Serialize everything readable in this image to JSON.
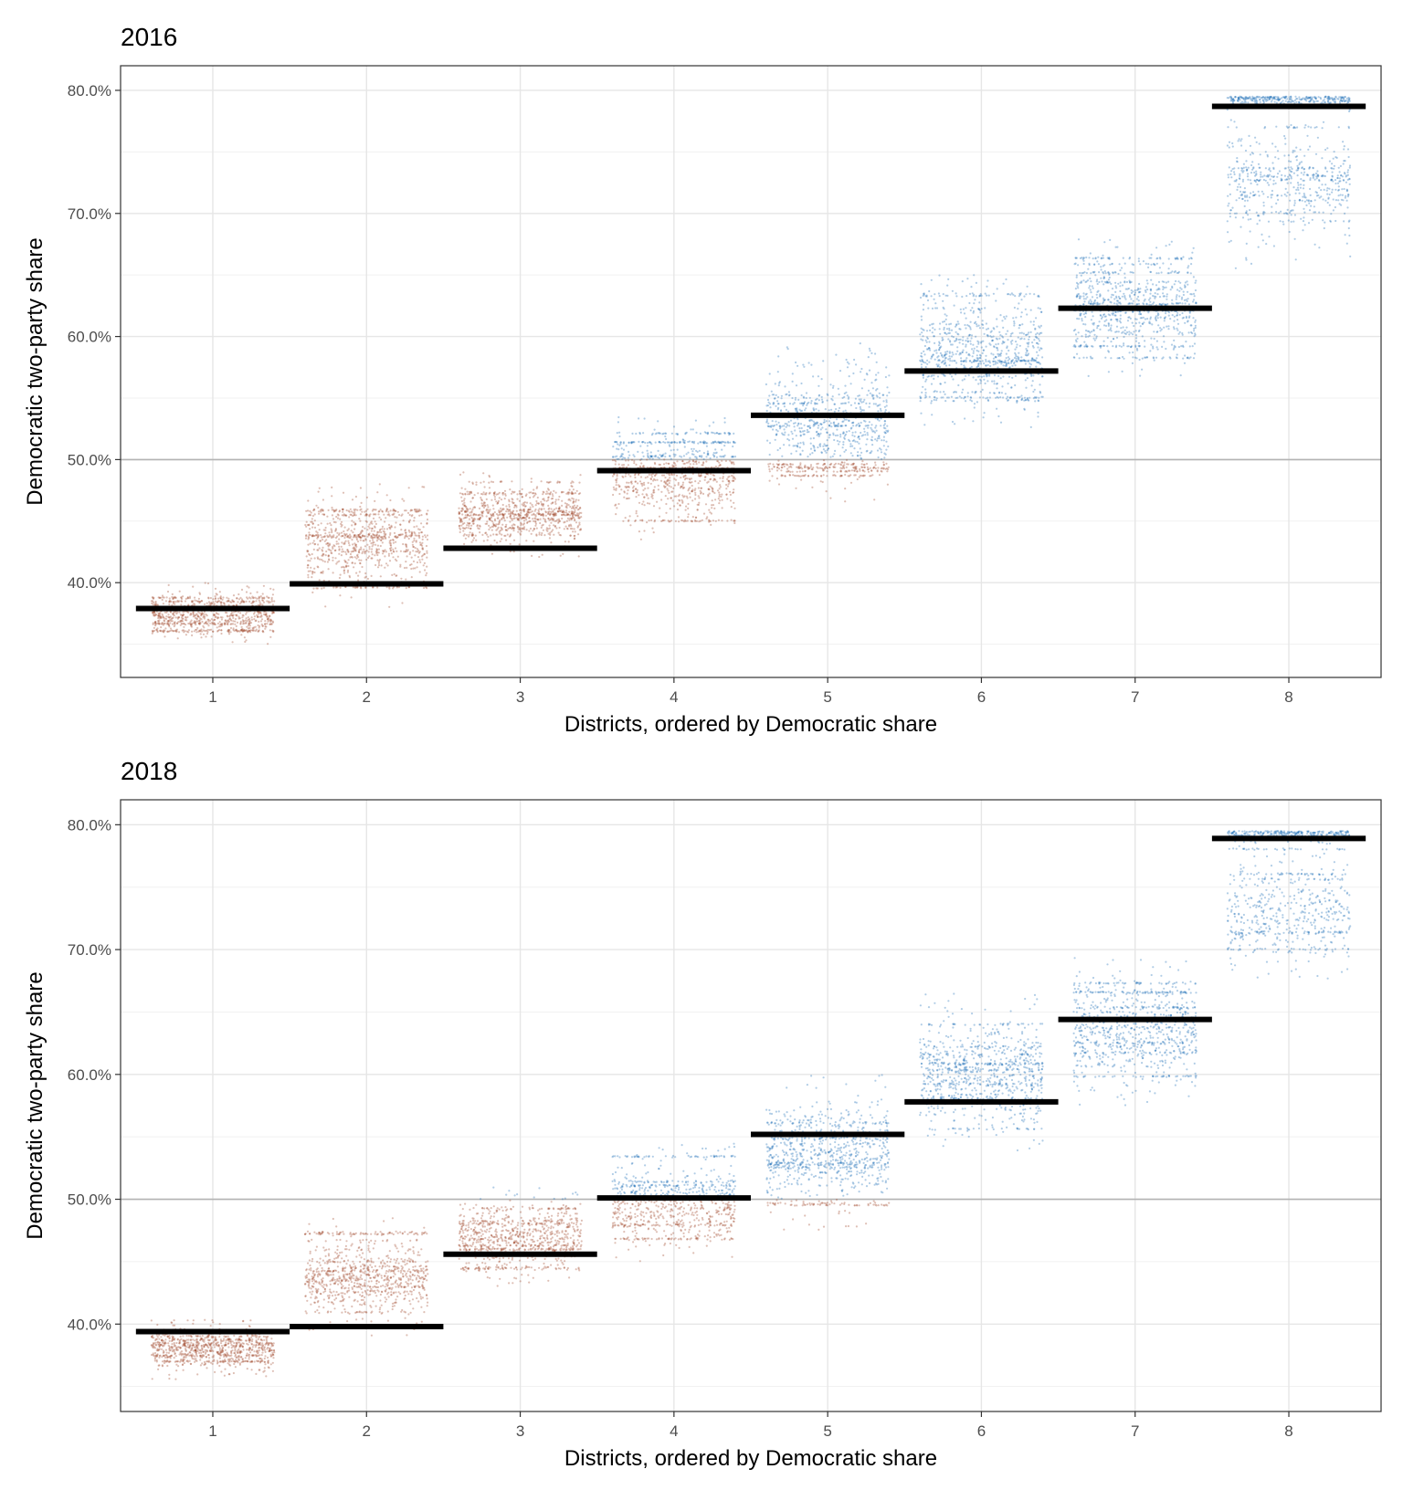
{
  "chart_data": [
    {
      "type": "scatter",
      "title": "2016",
      "xlabel": "Districts, ordered by Democratic share",
      "ylabel": "Democratic two-party share",
      "x_ticks": [
        "1",
        "2",
        "3",
        "4",
        "5",
        "6",
        "7",
        "8"
      ],
      "y_ticks": [
        "40.0%",
        "50.0%",
        "60.0%",
        "70.0%",
        "80.0%"
      ],
      "y_tick_values": [
        40,
        50,
        60,
        70,
        80
      ],
      "ylim": [
        32.3,
        82.0
      ],
      "xlim": [
        0.4,
        8.6
      ],
      "grid": true,
      "reference_line": 50,
      "colors": {
        "democratic": "#1f6fb8",
        "republican": "#a0492a",
        "actual": "#000000",
        "reference": "#b3b3b3"
      },
      "actual_results": [
        37.9,
        39.9,
        42.8,
        49.1,
        53.6,
        57.2,
        62.3,
        78.7
      ],
      "simulated_ranges": [
        {
          "district": 1,
          "low": 35.0,
          "high": 40.0
        },
        {
          "district": 2,
          "low": 38.0,
          "high": 48.0
        },
        {
          "district": 3,
          "low": 42.0,
          "high": 49.0
        },
        {
          "district": 4,
          "low": 43.5,
          "high": 53.5
        },
        {
          "district": 5,
          "low": 46.5,
          "high": 59.5
        },
        {
          "district": 6,
          "low": 52.5,
          "high": 65.0
        },
        {
          "district": 7,
          "low": 56.5,
          "high": 68.0
        },
        {
          "district": 8,
          "low": 65.5,
          "high": 79.5
        }
      ]
    },
    {
      "type": "scatter",
      "title": "2018",
      "xlabel": "Districts, ordered by Democratic share",
      "ylabel": "Democratic two-party share",
      "x_ticks": [
        "1",
        "2",
        "3",
        "4",
        "5",
        "6",
        "7",
        "8"
      ],
      "y_ticks": [
        "40.0%",
        "50.0%",
        "60.0%",
        "70.0%",
        "80.0%"
      ],
      "y_tick_values": [
        40,
        50,
        60,
        70,
        80
      ],
      "ylim": [
        33.0,
        82.0
      ],
      "xlim": [
        0.4,
        8.6
      ],
      "grid": true,
      "reference_line": 50,
      "colors": {
        "democratic": "#1f6fb8",
        "republican": "#a0492a",
        "actual": "#000000",
        "reference": "#b3b3b3"
      },
      "actual_results": [
        39.4,
        39.8,
        45.6,
        50.1,
        55.2,
        57.8,
        64.4,
        78.9
      ],
      "simulated_ranges": [
        {
          "district": 1,
          "low": 35.5,
          "high": 40.5
        },
        {
          "district": 2,
          "low": 39.0,
          "high": 48.5
        },
        {
          "district": 3,
          "low": 43.0,
          "high": 51.0
        },
        {
          "district": 4,
          "low": 45.0,
          "high": 54.5
        },
        {
          "district": 5,
          "low": 47.5,
          "high": 60.0
        },
        {
          "district": 6,
          "low": 53.5,
          "high": 66.5
        },
        {
          "district": 7,
          "low": 57.5,
          "high": 69.5
        },
        {
          "district": 8,
          "low": 66.5,
          "high": 79.5
        }
      ]
    }
  ]
}
